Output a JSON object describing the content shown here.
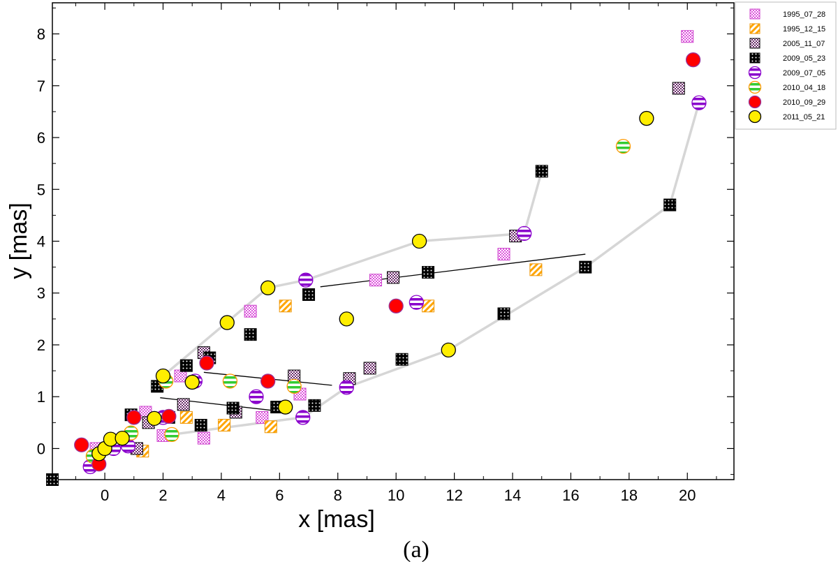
{
  "chart_data": {
    "type": "scatter",
    "title": "",
    "xlabel": "x [mas]",
    "ylabel": "y [mas]",
    "caption": "(a)",
    "xlim": [
      -1.8,
      21.6
    ],
    "ylim": [
      -0.6,
      8.6
    ],
    "xticks": [
      0,
      2,
      4,
      6,
      8,
      10,
      12,
      14,
      16,
      18,
      20
    ],
    "yticks": [
      0,
      1,
      2,
      3,
      4,
      5,
      6,
      7,
      8
    ],
    "legend_position": "outside-top-right",
    "series": [
      {
        "name": "1995_07_28",
        "marker": "square",
        "fill": "#dd55dd",
        "edge": "#cc44cc",
        "pattern": "checker",
        "x": [
          -0.3,
          1.4,
          2.0,
          2.6,
          3.4,
          5.0,
          5.4,
          6.7,
          9.3,
          13.7,
          20.0
        ],
        "y": [
          0.0,
          0.7,
          0.25,
          1.4,
          0.2,
          2.65,
          0.6,
          1.05,
          3.25,
          3.75,
          7.95
        ]
      },
      {
        "name": "1995_12_15",
        "marker": "square",
        "fill": "#ffa500",
        "edge": "#ee9500",
        "pattern": "diagonal",
        "x": [
          1.3,
          2.8,
          4.1,
          5.7,
          6.2,
          11.1,
          14.8
        ],
        "y": [
          -0.05,
          0.6,
          0.45,
          0.42,
          2.75,
          2.75,
          3.45
        ]
      },
      {
        "name": "2005_11_07",
        "marker": "square",
        "fill": "#6a2a6a",
        "edge": "#000000",
        "pattern": "checker",
        "x": [
          1.1,
          1.5,
          2.7,
          3.4,
          4.5,
          6.5,
          8.4,
          9.1,
          9.9,
          14.1,
          19.7
        ],
        "y": [
          0.0,
          0.5,
          0.85,
          1.85,
          0.7,
          1.4,
          1.35,
          1.55,
          3.3,
          4.1,
          6.95
        ]
      },
      {
        "name": "2009_05_23",
        "marker": "square",
        "fill": "#000000",
        "edge": "#000000",
        "pattern": "dots",
        "x": [
          -1.8,
          0.9,
          1.8,
          2.2,
          2.8,
          3.6,
          3.3,
          4.4,
          5.0,
          5.9,
          7.0,
          7.2,
          10.2,
          11.1,
          13.7,
          15.0,
          16.5,
          19.4
        ],
        "y": [
          -0.6,
          0.65,
          1.2,
          0.6,
          1.6,
          1.75,
          0.45,
          0.78,
          2.2,
          0.8,
          2.97,
          0.83,
          1.72,
          3.4,
          2.6,
          5.35,
          3.5,
          4.7
        ]
      },
      {
        "name": "2009_07_05",
        "marker": "circle",
        "fill": "#ffffff",
        "stripe": "#8a00cc",
        "edge": "#8a00cc",
        "pattern": "hstripes",
        "x": [
          -0.5,
          0.3,
          0.8,
          2.0,
          3.1,
          5.2,
          6.9,
          6.8,
          8.3,
          10.7,
          14.4,
          20.4
        ],
        "y": [
          -0.35,
          0.0,
          0.05,
          0.6,
          1.3,
          1.0,
          3.25,
          0.6,
          1.18,
          2.82,
          4.15,
          6.67
        ]
      },
      {
        "name": "2010_04_18",
        "marker": "circle",
        "fill": "#ffffff",
        "stripe": "#33cc33",
        "edge": "#ff9900",
        "pattern": "hstripes",
        "x": [
          -0.4,
          0.9,
          2.1,
          2.3,
          4.3,
          6.5,
          17.8
        ],
        "y": [
          -0.15,
          0.3,
          1.3,
          0.27,
          1.3,
          1.2,
          5.83
        ]
      },
      {
        "name": "2010_09_29",
        "marker": "circle",
        "fill": "#ff0000",
        "edge": "#993399",
        "pattern": "solid",
        "x": [
          -0.8,
          -0.2,
          1.0,
          2.2,
          3.5,
          5.6,
          10.0,
          20.2
        ],
        "y": [
          0.07,
          -0.3,
          0.6,
          0.62,
          1.65,
          1.3,
          2.75,
          7.5
        ]
      },
      {
        "name": "2011_05_21",
        "marker": "circle",
        "fill": "#ffee00",
        "edge": "#000000",
        "pattern": "solid",
        "x": [
          -0.2,
          0.0,
          0.2,
          0.6,
          1.7,
          2.0,
          3.0,
          4.2,
          5.6,
          6.2,
          8.3,
          10.8,
          11.8,
          18.6
        ],
        "y": [
          -0.1,
          0.0,
          0.18,
          0.2,
          0.58,
          1.4,
          1.28,
          2.43,
          3.1,
          0.8,
          2.5,
          4.0,
          1.9,
          6.37
        ]
      }
    ],
    "grey_tracks": [
      {
        "x": [
          2.0,
          5.6,
          6.9,
          10.8,
          14.4
        ],
        "y": [
          1.4,
          3.1,
          3.25,
          4.0,
          4.15
        ]
      },
      {
        "x": [
          14.4,
          15.0
        ],
        "y": [
          4.15,
          5.35
        ]
      },
      {
        "x": [
          2.3,
          6.8,
          8.3,
          11.8,
          16.5,
          19.4,
          20.4
        ],
        "y": [
          0.27,
          0.6,
          1.18,
          1.9,
          3.5,
          4.7,
          6.67
        ]
      }
    ],
    "black_lines": [
      {
        "x": [
          7.4,
          16.5
        ],
        "y": [
          3.12,
          3.75
        ]
      },
      {
        "x": [
          3.4,
          7.8
        ],
        "y": [
          1.47,
          1.22
        ]
      },
      {
        "x": [
          1.9,
          6.0
        ],
        "y": [
          0.98,
          0.72
        ]
      }
    ]
  }
}
